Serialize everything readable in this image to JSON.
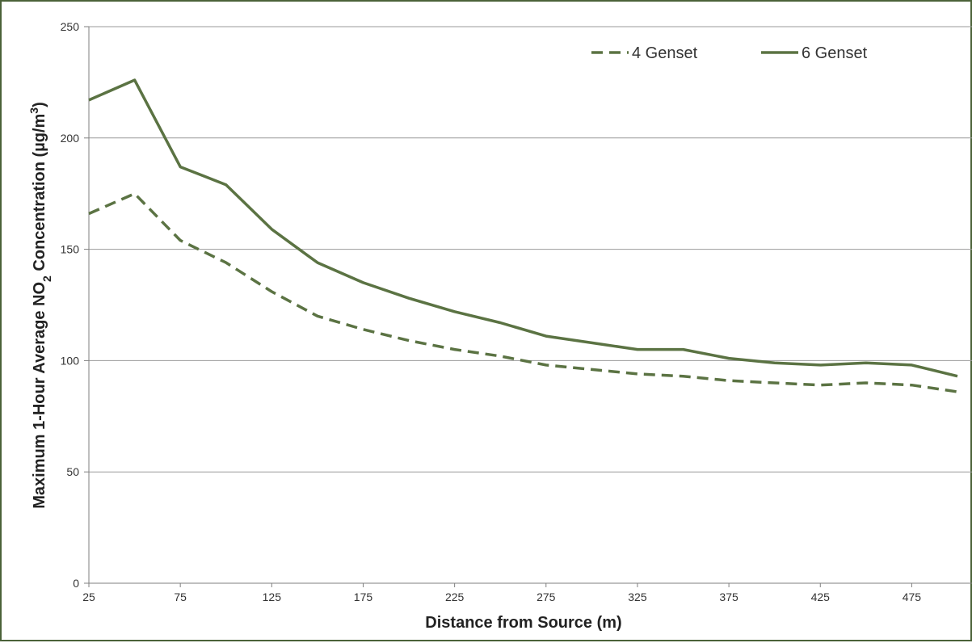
{
  "chart_data": {
    "type": "line",
    "xlabel": "Distance from Source (m)",
    "ylabel_parts": {
      "main": "Maximum 1-Hour Average NO",
      "subscript": "2",
      "middle": " Concentration (µg/m",
      "superscript": "3",
      "end": ")"
    },
    "x": [
      25,
      50,
      75,
      100,
      125,
      150,
      175,
      200,
      225,
      250,
      275,
      300,
      325,
      350,
      375,
      400,
      425,
      450,
      475,
      500
    ],
    "xlim": [
      25,
      500
    ],
    "ylim": [
      0,
      250
    ],
    "x_ticks": [
      25,
      75,
      125,
      175,
      225,
      275,
      325,
      375,
      425,
      475
    ],
    "y_ticks": [
      0,
      50,
      100,
      150,
      200,
      250
    ],
    "grid": "horizontal",
    "legend_position": "top-right",
    "series": [
      {
        "name": "4 Genset",
        "style": "dashed",
        "color": "#5b7343",
        "values": [
          166,
          175,
          154,
          144,
          131,
          120,
          114,
          109,
          105,
          102,
          98,
          96,
          94,
          93,
          91,
          90,
          89,
          90,
          89,
          86
        ]
      },
      {
        "name": "6 Genset",
        "style": "solid",
        "color": "#5b7343",
        "values": [
          217,
          226,
          187,
          179,
          159,
          144,
          135,
          128,
          122,
          117,
          111,
          108,
          105,
          105,
          101,
          99,
          98,
          99,
          98,
          93
        ]
      }
    ]
  }
}
